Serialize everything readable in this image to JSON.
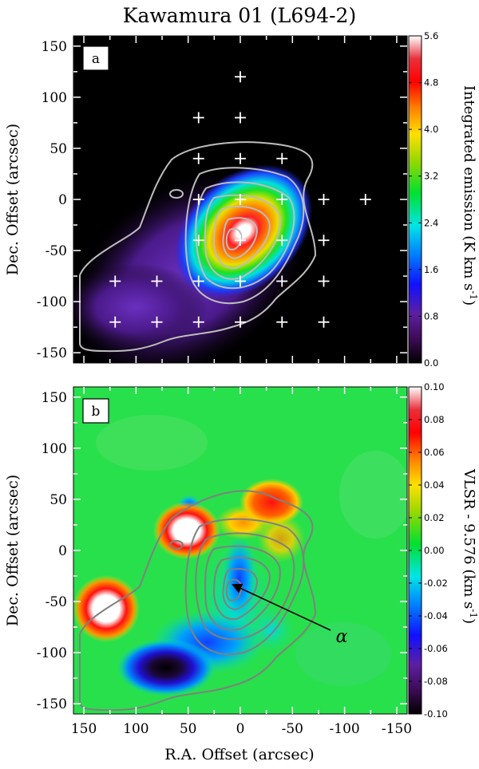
{
  "title": "Kawamura 01 (L694-2)",
  "chart_data": [
    {
      "panel": "a",
      "type": "heatmap",
      "title": "Kawamura 01 (L694-2)",
      "xlabel": "",
      "ylabel": "Dec. Offset (arcsec)",
      "xlim": [
        160,
        -160
      ],
      "ylim": [
        -160,
        160
      ],
      "x_ticks": [
        "150",
        "100",
        "50",
        "0",
        "-50",
        "-100",
        "-150"
      ],
      "y_ticks": [
        "150",
        "100",
        "50",
        "0",
        "-50",
        "-100",
        "-150"
      ],
      "colorbar": {
        "label": "Integrated emission (K km s-1)",
        "range": [
          0.0,
          5.6
        ],
        "ticks": [
          "5.6",
          "4.8",
          "4.0",
          "3.2",
          "2.4",
          "1.6",
          "0.8",
          "0.0"
        ]
      },
      "colormap": "black-purple-blue-cyan-green-yellow-red-white",
      "peak": {
        "x": 5,
        "y": -38,
        "value": 5.6
      },
      "contour_color": "#bdbdbd",
      "pointing_positions": [
        [
          0,
          120
        ],
        [
          40,
          80
        ],
        [
          0,
          80
        ],
        [
          40,
          40
        ],
        [
          0,
          40
        ],
        [
          -40,
          40
        ],
        [
          40,
          0
        ],
        [
          0,
          0
        ],
        [
          -40,
          0
        ],
        [
          -80,
          0
        ],
        [
          -120,
          0
        ],
        [
          40,
          -40
        ],
        [
          0,
          -40
        ],
        [
          -40,
          -40
        ],
        [
          -80,
          -40
        ],
        [
          120,
          -80
        ],
        [
          80,
          -80
        ],
        [
          40,
          -80
        ],
        [
          0,
          -80
        ],
        [
          -40,
          -80
        ],
        [
          -80,
          -80
        ],
        [
          120,
          -120
        ],
        [
          80,
          -120
        ],
        [
          40,
          -120
        ],
        [
          0,
          -120
        ],
        [
          -40,
          -120
        ],
        [
          -80,
          -120
        ]
      ]
    },
    {
      "panel": "b",
      "type": "heatmap",
      "xlabel": "R.A. Offset (arcsec)",
      "ylabel": "Dec. Offset (arcsec)",
      "xlim": [
        160,
        -160
      ],
      "ylim": [
        -160,
        160
      ],
      "x_ticks": [
        "150",
        "100",
        "50",
        "0",
        "-50",
        "-100",
        "-150"
      ],
      "y_ticks": [
        "150",
        "100",
        "50",
        "0",
        "-50",
        "-100",
        "-150"
      ],
      "colorbar": {
        "label": "VLSR - 9.576 (km s-1)",
        "range": [
          -0.1,
          0.1
        ],
        "ticks": [
          "0.10",
          "0.08",
          "0.06",
          "0.04",
          "0.02",
          "0.00",
          "-0.02",
          "-0.04",
          "-0.06",
          "-0.08",
          "-0.10"
        ]
      },
      "colormap": "black-purple-blue-cyan-green-yellow-red-white",
      "features": [
        {
          "x": 130,
          "y": -80,
          "value": 0.1
        },
        {
          "x": 45,
          "y": 0,
          "value": 0.1
        },
        {
          "x": -40,
          "y": 35,
          "value": 0.07
        },
        {
          "x": 15,
          "y": 45,
          "value": 0.05
        },
        {
          "x": 100,
          "y": -120,
          "value": -0.1
        },
        {
          "x": 40,
          "y": 50,
          "value": -0.04
        }
      ],
      "contour_color": "#808080",
      "arrow_label": "α",
      "arrow_from": {
        "x": -110,
        "y": -80
      },
      "arrow_to": {
        "x": 8,
        "y": -35
      }
    }
  ]
}
